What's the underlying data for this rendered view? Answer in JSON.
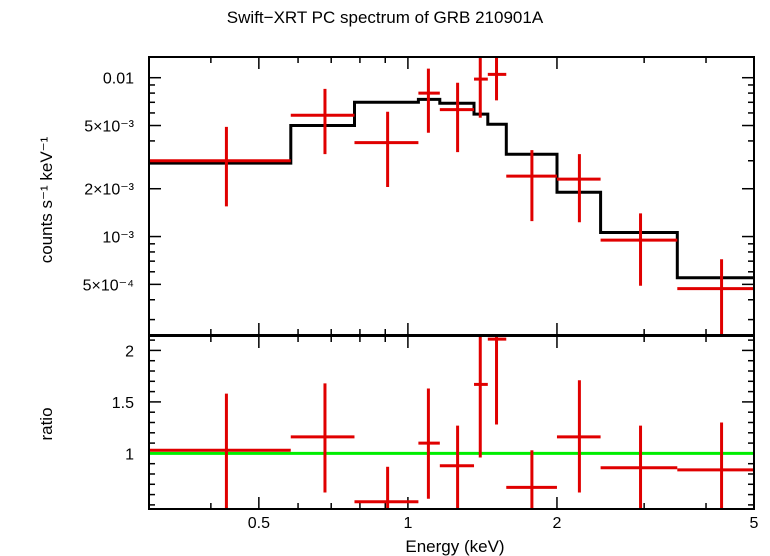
{
  "title": "Swift−XRT PC spectrum of GRB 210901A",
  "chart_data": [
    {
      "type": "step",
      "panel": "spectrum",
      "xlabel": "Energy (keV)",
      "ylabel": "counts s⁻¹ keV⁻¹",
      "xscale": "log",
      "yscale": "log",
      "xlim": [
        0.3,
        5.0
      ],
      "ylim": [
        0.00024,
        0.0135
      ],
      "yticks": [
        {
          "value": 0.01,
          "label": "0.01"
        },
        {
          "value": 0.005,
          "label": "5×10⁻³"
        },
        {
          "value": 0.002,
          "label": "2×10⁻³"
        },
        {
          "value": 0.001,
          "label": "10⁻³"
        },
        {
          "value": 0.0005,
          "label": "5×10⁻⁴"
        }
      ],
      "data_color": "#e00000",
      "model_color": "#000000",
      "data": [
        {
          "x": 0.43,
          "xlo": 0.3,
          "xhi": 0.58,
          "y": 0.003,
          "ylo": 0.00155,
          "yhi": 0.0049
        },
        {
          "x": 0.68,
          "xlo": 0.58,
          "xhi": 0.78,
          "y": 0.0058,
          "ylo": 0.0033,
          "yhi": 0.0085
        },
        {
          "x": 0.91,
          "xlo": 0.78,
          "xhi": 1.05,
          "y": 0.0039,
          "ylo": 0.00205,
          "yhi": 0.0061
        },
        {
          "x": 1.1,
          "xlo": 1.05,
          "xhi": 1.16,
          "y": 0.008,
          "ylo": 0.0045,
          "yhi": 0.0114
        },
        {
          "x": 1.26,
          "xlo": 1.16,
          "xhi": 1.36,
          "y": 0.0063,
          "ylo": 0.0034,
          "yhi": 0.0093
        },
        {
          "x": 1.4,
          "xlo": 1.36,
          "xhi": 1.45,
          "y": 0.0098,
          "ylo": 0.0056,
          "yhi": 0.0133
        },
        {
          "x": 1.51,
          "xlo": 1.45,
          "xhi": 1.58,
          "y": 0.0105,
          "ylo": 0.0072,
          "yhi": 0.0135
        },
        {
          "x": 1.78,
          "xlo": 1.58,
          "xhi": 2.0,
          "y": 0.0024,
          "ylo": 0.00125,
          "yhi": 0.0035
        },
        {
          "x": 2.22,
          "xlo": 2.0,
          "xhi": 2.45,
          "y": 0.0023,
          "ylo": 0.00123,
          "yhi": 0.0033
        },
        {
          "x": 2.95,
          "xlo": 2.45,
          "xhi": 3.5,
          "y": 0.00095,
          "ylo": 0.00049,
          "yhi": 0.0014
        },
        {
          "x": 4.3,
          "xlo": 3.5,
          "xhi": 5.0,
          "y": 0.00047,
          "ylo": 0.00024,
          "yhi": 0.00072
        }
      ],
      "model": [
        {
          "xlo": 0.3,
          "xhi": 0.58,
          "y": 0.0029
        },
        {
          "xlo": 0.58,
          "xhi": 0.78,
          "y": 0.005
        },
        {
          "xlo": 0.78,
          "xhi": 1.05,
          "y": 0.007
        },
        {
          "xlo": 1.05,
          "xhi": 1.16,
          "y": 0.0073
        },
        {
          "xlo": 1.16,
          "xhi": 1.36,
          "y": 0.0069
        },
        {
          "xlo": 1.36,
          "xhi": 1.45,
          "y": 0.0059
        },
        {
          "xlo": 1.45,
          "xhi": 1.58,
          "y": 0.0051
        },
        {
          "xlo": 1.58,
          "xhi": 2.0,
          "y": 0.0033
        },
        {
          "xlo": 2.0,
          "xhi": 2.45,
          "y": 0.0019
        },
        {
          "xlo": 2.45,
          "xhi": 3.5,
          "y": 0.00106
        },
        {
          "xlo": 3.5,
          "xhi": 5.0,
          "y": 0.00055
        }
      ]
    },
    {
      "type": "scatter",
      "panel": "ratio",
      "xlabel": "Energy (keV)",
      "ylabel": "ratio",
      "xscale": "log",
      "yscale": "linear",
      "xlim": [
        0.3,
        5.0
      ],
      "ylim": [
        0.46,
        2.14
      ],
      "xticks": [
        {
          "value": 0.5,
          "label": "0.5"
        },
        {
          "value": 1,
          "label": "1"
        },
        {
          "value": 2,
          "label": "2"
        },
        {
          "value": 5,
          "label": "5"
        }
      ],
      "yticks": [
        {
          "value": 1,
          "label": "1"
        },
        {
          "value": 1.5,
          "label": "1.5"
        },
        {
          "value": 2,
          "label": "2"
        }
      ],
      "reference_line": {
        "y": 1.0,
        "color": "#00ee00"
      },
      "data_color": "#e00000",
      "data": [
        {
          "x": 0.43,
          "xlo": 0.3,
          "xhi": 0.58,
          "y": 1.03,
          "ylo": 0.46,
          "yhi": 1.58
        },
        {
          "x": 0.68,
          "xlo": 0.58,
          "xhi": 0.78,
          "y": 1.16,
          "ylo": 0.62,
          "yhi": 1.68
        },
        {
          "x": 0.91,
          "xlo": 0.78,
          "xhi": 1.05,
          "y": 0.53,
          "ylo": 0.46,
          "yhi": 0.87
        },
        {
          "x": 1.1,
          "xlo": 1.05,
          "xhi": 1.16,
          "y": 1.1,
          "ylo": 0.56,
          "yhi": 1.63
        },
        {
          "x": 1.26,
          "xlo": 1.16,
          "xhi": 1.36,
          "y": 0.88,
          "ylo": 0.46,
          "yhi": 1.27
        },
        {
          "x": 1.4,
          "xlo": 1.36,
          "xhi": 1.45,
          "y": 1.67,
          "ylo": 0.96,
          "yhi": 2.14
        },
        {
          "x": 1.51,
          "xlo": 1.45,
          "xhi": 1.58,
          "y": 2.11,
          "ylo": 1.28,
          "yhi": 2.14
        },
        {
          "x": 1.78,
          "xlo": 1.58,
          "xhi": 2.0,
          "y": 0.67,
          "ylo": 0.46,
          "yhi": 1.03
        },
        {
          "x": 2.22,
          "xlo": 2.0,
          "xhi": 2.45,
          "y": 1.16,
          "ylo": 0.62,
          "yhi": 1.71
        },
        {
          "x": 2.95,
          "xlo": 2.45,
          "xhi": 3.5,
          "y": 0.86,
          "ylo": 0.46,
          "yhi": 1.27
        },
        {
          "x": 4.3,
          "xlo": 3.5,
          "xhi": 5.0,
          "y": 0.84,
          "ylo": 0.46,
          "yhi": 1.3
        }
      ]
    }
  ]
}
